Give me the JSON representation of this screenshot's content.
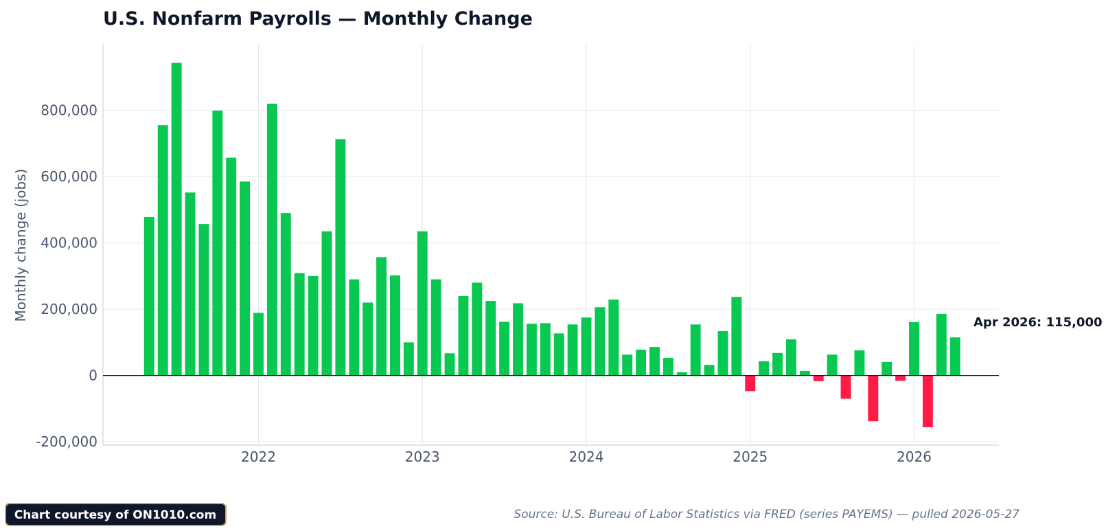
{
  "chart_data": {
    "type": "bar",
    "title": "U.S. Nonfarm Payrolls — Monthly Change",
    "xlabel": "",
    "ylabel": "Monthly change (jobs)",
    "ylim": [
      -210000,
      1000000
    ],
    "yticks": [
      -200000,
      0,
      200000,
      400000,
      600000,
      800000
    ],
    "ytick_labels": [
      "-200,000",
      "0",
      "200,000",
      "400,000",
      "600,000",
      "800,000"
    ],
    "xticks": [
      "2022",
      "2023",
      "2024",
      "2025",
      "2026"
    ],
    "grid": true,
    "start": "2021-05",
    "categories": [
      "May 2021",
      "Jun 2021",
      "Jul 2021",
      "Aug 2021",
      "Sep 2021",
      "Oct 2021",
      "Nov 2021",
      "Dec 2021",
      "Jan 2022",
      "Feb 2022",
      "Mar 2022",
      "Apr 2022",
      "May 2022",
      "Jun 2022",
      "Jul 2022",
      "Aug 2022",
      "Sep 2022",
      "Oct 2022",
      "Nov 2022",
      "Dec 2022",
      "Jan 2023",
      "Feb 2023",
      "Mar 2023",
      "Apr 2023",
      "May 2023",
      "Jun 2023",
      "Jul 2023",
      "Aug 2023",
      "Sep 2023",
      "Oct 2023",
      "Nov 2023",
      "Dec 2023",
      "Jan 2024",
      "Feb 2024",
      "Mar 2024",
      "Apr 2024",
      "May 2024",
      "Jun 2024",
      "Jul 2024",
      "Aug 2024",
      "Sep 2024",
      "Oct 2024",
      "Nov 2024",
      "Dec 2024",
      "Jan 2025",
      "Feb 2025",
      "Mar 2025",
      "Apr 2025",
      "May 2025",
      "Jun 2025",
      "Jul 2025",
      "Aug 2025",
      "Sep 2025",
      "Oct 2025",
      "Nov 2025",
      "Dec 2025",
      "Jan 2026",
      "Feb 2026",
      "Mar 2026",
      "Apr 2026"
    ],
    "values": [
      478000,
      755000,
      943000,
      552000,
      457000,
      799000,
      657000,
      585000,
      189000,
      820000,
      490000,
      309000,
      300000,
      435000,
      713000,
      290000,
      220000,
      357000,
      302000,
      100000,
      435000,
      290000,
      67000,
      240000,
      280000,
      225000,
      162000,
      218000,
      156000,
      158000,
      127000,
      154000,
      175000,
      206000,
      229000,
      63000,
      78000,
      86000,
      53000,
      10000,
      154000,
      32000,
      134000,
      237000,
      -47000,
      43000,
      68000,
      109000,
      14000,
      -17000,
      63000,
      -70000,
      76000,
      -138000,
      41000,
      -16000,
      161000,
      -156000,
      186000,
      115000
    ],
    "colors": {
      "positive": "#09c851",
      "negative": "#ff1a47"
    },
    "annotation": "Apr 2026: 115,000"
  },
  "footer": {
    "badge": "Chart courtesy of ON1010.com",
    "source": "Source: U.S. Bureau of Labor Statistics via FRED (series PAYEMS) — pulled 2026-05-27"
  },
  "colors": {
    "title": "#0f172a",
    "grid": "#e2e8f0",
    "tick": "#475569",
    "badge_bg": "#0f172a",
    "badge_border": "#c9a463"
  }
}
